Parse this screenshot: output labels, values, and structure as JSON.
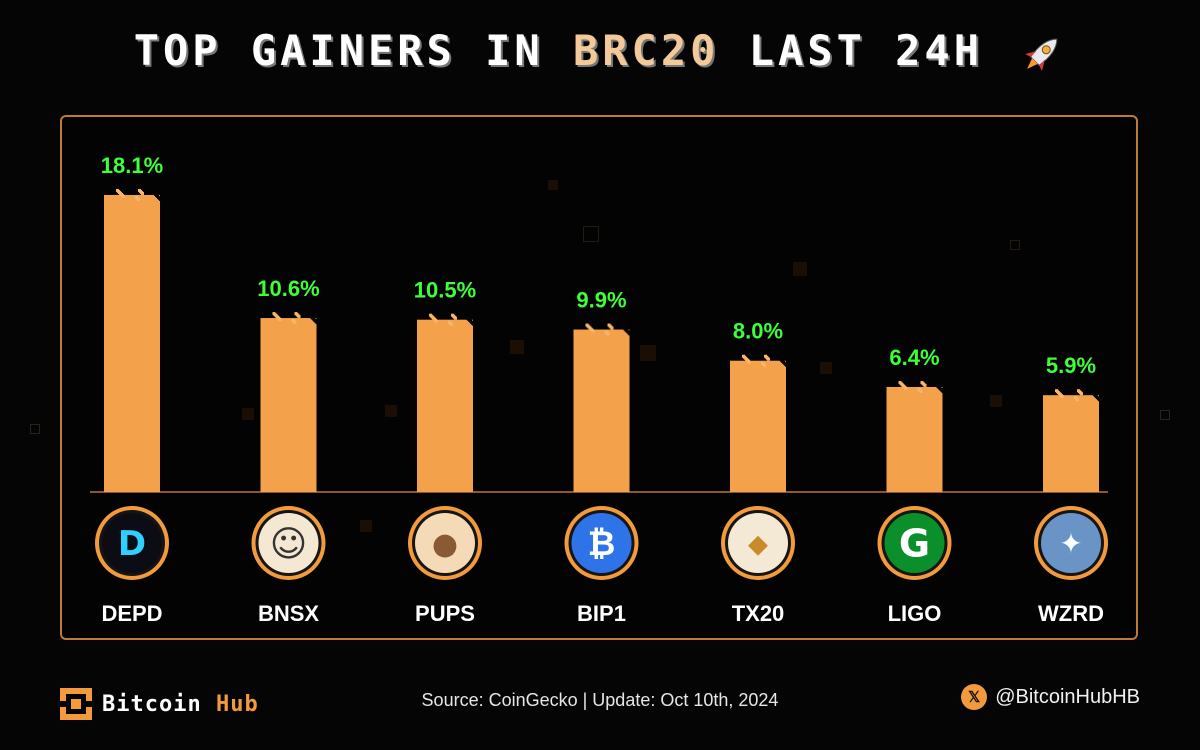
{
  "title": {
    "part1": "TOP GAINERS IN ",
    "accent": "BRC20",
    "part2": " LAST 24H"
  },
  "chart_data": {
    "type": "bar",
    "title": "TOP GAINERS IN BRC20 LAST 24H",
    "categories": [
      "DEPD",
      "BNSX",
      "PUPS",
      "BIP1",
      "TX20",
      "LIGO",
      "WZRD"
    ],
    "values": [
      18.1,
      10.6,
      10.5,
      9.9,
      8.0,
      6.4,
      5.9
    ],
    "value_labels": [
      "18.1%",
      "10.6%",
      "10.5%",
      "9.9%",
      "8.0%",
      "6.4%",
      "5.9%"
    ],
    "unit": "%",
    "ylim": [
      0,
      20
    ],
    "grid": false,
    "icons": [
      "depd-logo-icon",
      "bnsx-troll-icon",
      "pups-monkey-icon",
      "bip1-bitcoin-icon",
      "tx20-dino-icon",
      "ligo-g-icon",
      "wzrd-wizard-icon"
    ]
  },
  "colors": {
    "bar": "#f3a14a",
    "bar_top": "#f7b567",
    "label": "#3dff3a",
    "border": "#c07a36",
    "accent": "#f3c99a"
  },
  "footer": {
    "brand_main": "Bitcoin",
    "brand_hub": "Hub",
    "source": "Source: CoinGecko  |  Update: Oct 10th, 2024",
    "handle": "@BitcoinHubHB",
    "x_icon": "x-logo-icon"
  }
}
